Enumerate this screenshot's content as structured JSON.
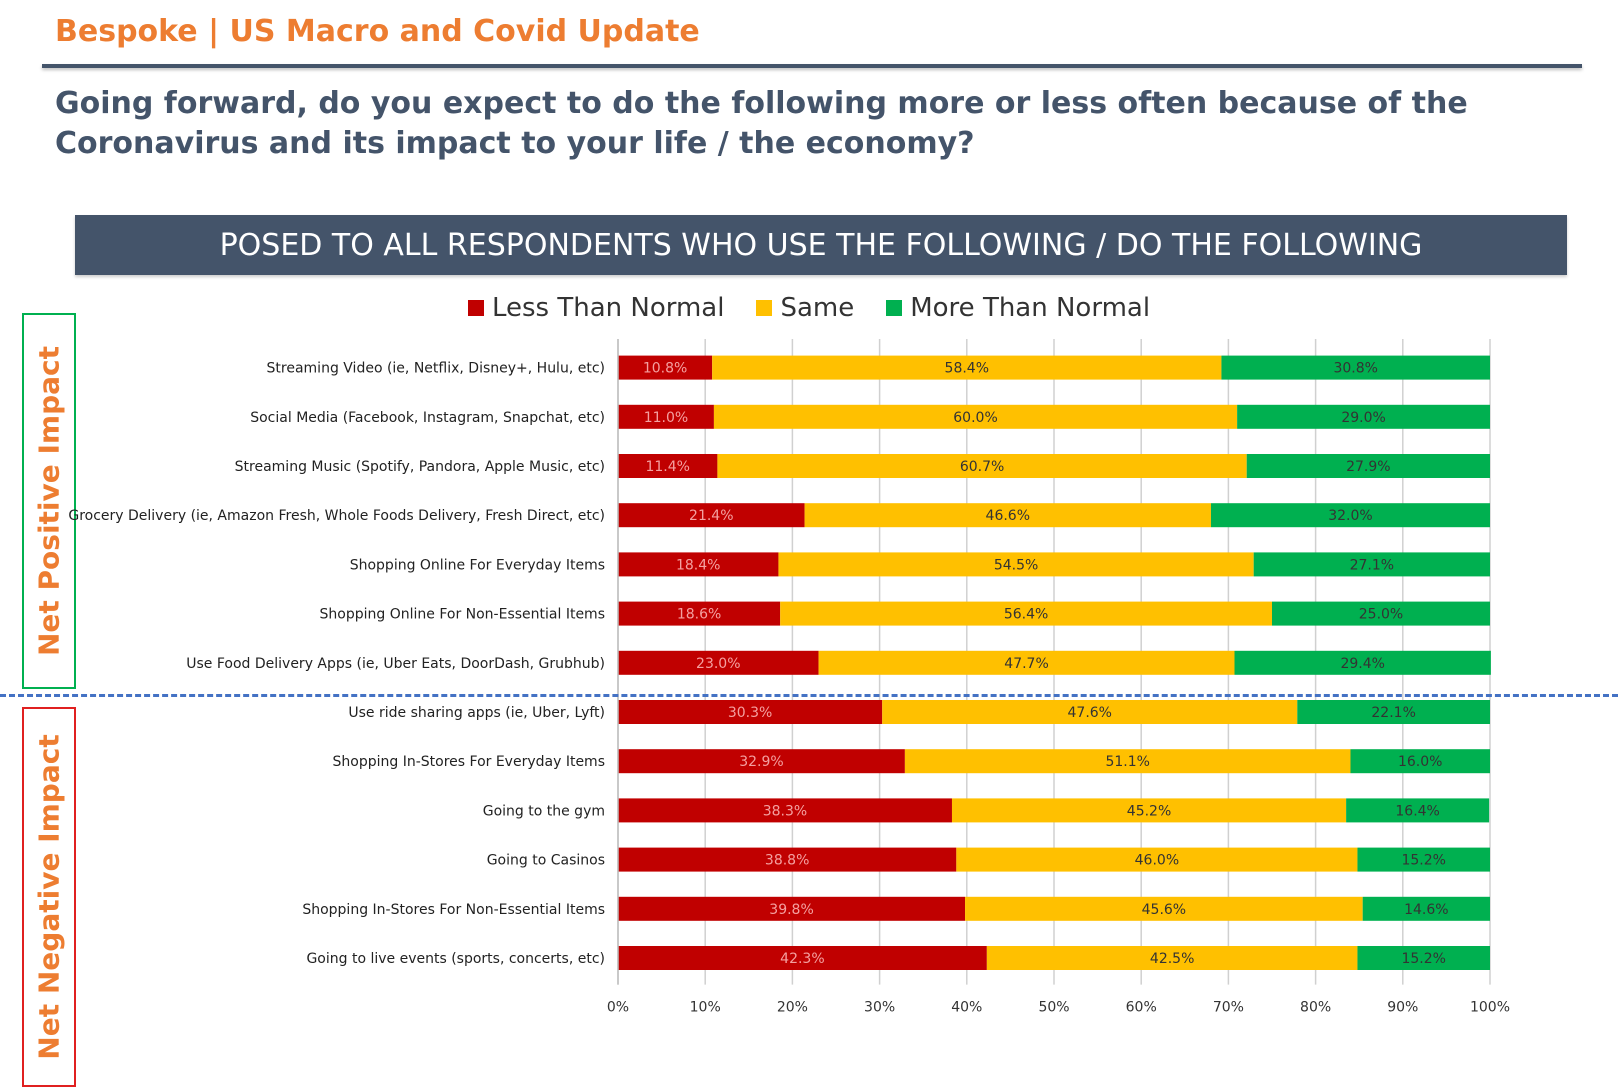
{
  "header": {
    "title": "Bespoke | US Macro and Covid Update"
  },
  "question": "Going forward, do you expect to do the following more or less often because of the Coronavirus and its impact to your life / the economy?",
  "banner": "POSED TO ALL RESPONDENTS WHO USE THE FOLLOWING / DO THE FOLLOWING",
  "side_labels": {
    "positive": "Net Positive Impact",
    "negative": "Net Negative Impact"
  },
  "colors": {
    "less": "#C00000",
    "same": "#FFC000",
    "more": "#00B050",
    "accent": "#ED7D31",
    "navy": "#44546A",
    "divider": "#4472C4"
  },
  "chart_data": {
    "type": "bar",
    "orientation": "horizontal",
    "stacked": true,
    "xlim": [
      0,
      100
    ],
    "x_ticks": [
      "0%",
      "10%",
      "20%",
      "30%",
      "40%",
      "50%",
      "60%",
      "70%",
      "80%",
      "90%",
      "100%"
    ],
    "grid": true,
    "legend_position": "top",
    "categories": [
      "Streaming Video (ie, Netflix, Disney+, Hulu, etc)",
      "Social Media  (Facebook, Instagram, Snapchat, etc)",
      "Streaming Music (Spotify, Pandora, Apple Music, etc)",
      "Grocery Delivery (ie, Amazon Fresh, Whole Foods Delivery, Fresh Direct, etc)",
      "Shopping Online For Everyday Items",
      "Shopping Online For Non-Essential Items",
      "Use Food Delivery Apps (ie, Uber Eats, DoorDash, Grubhub)",
      "Use ride sharing apps (ie, Uber, Lyft)",
      "Shopping In-Stores For Everyday Items",
      "Going to the gym",
      "Going to Casinos",
      "Shopping In-Stores For Non-Essential Items",
      "Going to live events (sports, concerts, etc)"
    ],
    "series": [
      {
        "name": "Less Than Normal",
        "color": "#C00000",
        "values": [
          10.8,
          11.0,
          11.4,
          21.4,
          18.4,
          18.6,
          23.0,
          30.3,
          32.9,
          38.3,
          38.8,
          39.8,
          42.3
        ]
      },
      {
        "name": "Same",
        "color": "#FFC000",
        "values": [
          58.4,
          60.0,
          60.7,
          46.6,
          54.5,
          56.4,
          47.7,
          47.6,
          51.1,
          45.2,
          46.0,
          45.6,
          42.5
        ]
      },
      {
        "name": "More Than Normal",
        "color": "#00B050",
        "values": [
          30.8,
          29.0,
          27.9,
          32.0,
          27.1,
          25.0,
          29.4,
          22.1,
          16.0,
          16.4,
          15.2,
          14.6,
          15.2
        ]
      }
    ]
  }
}
